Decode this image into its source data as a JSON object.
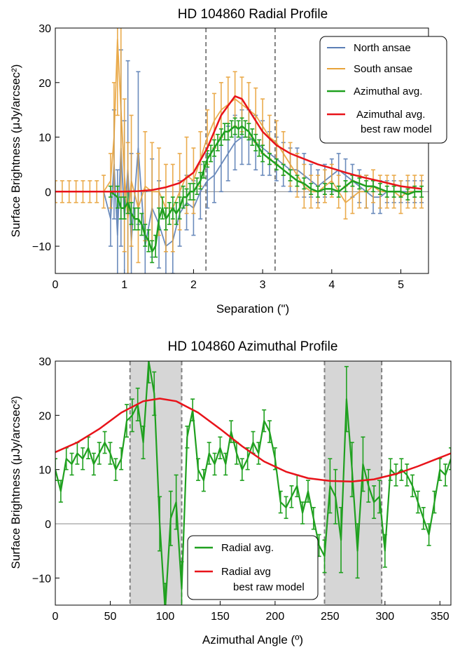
{
  "chart_data": [
    {
      "type": "line",
      "title": "HD 104860 Radial Profile",
      "xlabel": "Separation (\")",
      "ylabel": "Surface Brightness (μJy/arcsec²)",
      "xlim": [
        0,
        5.4
      ],
      "ylim": [
        -15,
        30
      ],
      "xticks": [
        0,
        1,
        2,
        3,
        4,
        5
      ],
      "yticks": [
        -10,
        0,
        10,
        20,
        30
      ],
      "vlines": [
        2.18,
        3.18
      ],
      "legend": {
        "position": "top-right",
        "entries": [
          "North ansae",
          "South ansae",
          "Azimuthal avg.",
          "Azimuthal avg.",
          "best raw model"
        ]
      },
      "series": [
        {
          "name": "North ansae",
          "color": "#5b7fb5",
          "x": [
            0,
            0.1,
            0.2,
            0.3,
            0.4,
            0.5,
            0.6,
            0.7,
            0.8,
            0.85,
            0.9,
            0.95,
            1.0,
            1.05,
            1.1,
            1.2,
            1.3,
            1.4,
            1.5,
            1.6,
            1.7,
            1.8,
            1.9,
            2.0,
            2.1,
            2.2,
            2.3,
            2.4,
            2.5,
            2.6,
            2.7,
            2.8,
            2.9,
            3.0,
            3.1,
            3.2,
            3.3,
            3.4,
            3.5,
            3.6,
            3.7,
            3.8,
            3.9,
            4.0,
            4.1,
            4.2,
            4.3,
            4.4,
            4.5,
            4.6,
            4.7,
            4.8,
            4.9,
            5.0,
            5.1,
            5.2,
            5.3
          ],
          "y": [
            0,
            0,
            0,
            0,
            0,
            0,
            0,
            0,
            -5,
            5,
            -8,
            8,
            -5,
            4,
            -9,
            8,
            -10,
            -3,
            -6,
            -10,
            -9,
            -4,
            -2,
            -3,
            0,
            2,
            3,
            5,
            7,
            9,
            10,
            10,
            9,
            8,
            7,
            6,
            5,
            4,
            4,
            3,
            2,
            1,
            2,
            3,
            4,
            3,
            2,
            1,
            0,
            -1,
            -1,
            0,
            0,
            0,
            0,
            0,
            0
          ],
          "err": [
            0,
            0,
            0,
            0,
            0,
            0,
            0,
            0,
            5,
            10,
            12,
            18,
            18,
            20,
            16,
            14,
            10,
            9,
            8,
            7,
            6,
            6,
            5,
            5,
            5,
            5,
            5,
            5,
            5,
            5,
            5,
            5,
            5,
            5,
            4,
            4,
            4,
            4,
            4,
            4,
            3,
            3,
            3,
            3,
            3,
            3,
            3,
            3,
            3,
            3,
            3,
            2,
            2,
            2,
            2,
            2,
            2
          ]
        },
        {
          "name": "South ansae",
          "color": "#e8a33a",
          "x": [
            0,
            0.1,
            0.2,
            0.3,
            0.4,
            0.5,
            0.6,
            0.7,
            0.8,
            0.85,
            0.9,
            0.95,
            1.0,
            1.05,
            1.1,
            1.2,
            1.3,
            1.4,
            1.5,
            1.6,
            1.7,
            1.8,
            1.9,
            2.0,
            2.1,
            2.2,
            2.3,
            2.4,
            2.5,
            2.6,
            2.7,
            2.8,
            2.9,
            3.0,
            3.1,
            3.2,
            3.3,
            3.4,
            3.5,
            3.6,
            3.7,
            3.8,
            3.9,
            4.0,
            4.1,
            4.2,
            4.3,
            4.4,
            4.5,
            4.6,
            4.7,
            4.8,
            4.9,
            5.0,
            5.1,
            5.2,
            5.3
          ],
          "y": [
            0,
            0,
            0,
            0,
            0,
            0,
            0,
            0,
            2,
            10,
            28,
            15,
            3,
            -5,
            2,
            -3,
            1,
            0,
            0,
            -3,
            -3,
            0,
            3,
            2,
            6,
            10,
            13,
            15,
            16,
            17,
            16,
            15,
            14,
            12,
            10,
            9,
            7,
            5,
            3,
            1,
            0,
            0,
            1,
            2,
            0,
            -2,
            -1,
            0,
            0,
            1,
            0,
            0,
            0,
            -1,
            0,
            0,
            0
          ],
          "err": [
            2,
            2,
            2,
            2,
            2,
            2,
            2,
            3,
            5,
            10,
            14,
            16,
            14,
            14,
            12,
            10,
            10,
            9,
            8,
            8,
            8,
            7,
            7,
            6,
            5,
            5,
            5,
            5,
            5,
            5,
            5,
            5,
            5,
            5,
            4,
            4,
            4,
            4,
            4,
            4,
            3,
            3,
            3,
            3,
            3,
            3,
            3,
            3,
            3,
            3,
            3,
            3,
            3,
            3,
            3,
            3,
            3
          ]
        },
        {
          "name": "Azimuthal avg.",
          "color": "#1fa01f",
          "x": [
            0,
            0.1,
            0.2,
            0.3,
            0.4,
            0.5,
            0.6,
            0.7,
            0.8,
            0.9,
            0.95,
            1.0,
            1.05,
            1.1,
            1.15,
            1.2,
            1.25,
            1.3,
            1.35,
            1.4,
            1.45,
            1.5,
            1.55,
            1.6,
            1.65,
            1.7,
            1.75,
            1.8,
            1.85,
            1.9,
            1.95,
            2.0,
            2.05,
            2.1,
            2.15,
            2.2,
            2.25,
            2.3,
            2.35,
            2.4,
            2.45,
            2.5,
            2.55,
            2.6,
            2.65,
            2.7,
            2.75,
            2.8,
            2.85,
            2.9,
            2.95,
            3.0,
            3.1,
            3.2,
            3.3,
            3.4,
            3.5,
            3.6,
            3.7,
            3.8,
            3.9,
            4.0,
            4.1,
            4.2,
            4.3,
            4.4,
            4.5,
            4.6,
            4.7,
            4.8,
            4.9,
            5.0,
            5.1,
            5.2,
            5.3
          ],
          "y": [
            0,
            0,
            0,
            0,
            0,
            0,
            0,
            0,
            0,
            -1,
            -3,
            -3,
            -2,
            -4,
            -5,
            -5,
            -6,
            -8,
            -9,
            -11,
            -10,
            -5,
            -3,
            -5,
            -4,
            -3,
            -4,
            -3,
            -1,
            -1,
            0,
            0,
            1,
            2,
            4,
            6,
            7,
            8,
            9,
            10,
            11,
            11,
            11.5,
            12,
            11.5,
            12,
            11.5,
            11,
            10,
            9,
            8,
            7,
            6,
            5,
            4,
            3,
            2,
            1.5,
            0.5,
            0,
            0.5,
            0.5,
            0,
            1,
            2,
            1.5,
            1,
            1,
            0.5,
            0,
            0,
            0,
            -0.5,
            0,
            0
          ],
          "err": [
            0,
            0,
            0,
            0,
            0,
            0,
            0,
            0,
            1,
            2,
            2,
            2,
            2,
            2,
            2,
            2,
            2,
            2,
            2,
            2,
            2,
            2,
            2,
            2,
            2,
            2,
            2,
            2,
            2,
            1.5,
            1.5,
            1.5,
            1.5,
            1.5,
            1.5,
            1.5,
            1.5,
            1.5,
            1.5,
            1.5,
            1.5,
            1.5,
            1.5,
            1.5,
            1.5,
            1.5,
            1.5,
            1.5,
            1.5,
            1.5,
            1.5,
            1.5,
            1,
            1,
            1,
            1,
            1,
            1,
            1,
            1,
            1,
            1,
            1,
            1,
            1,
            1,
            1,
            1,
            1,
            1,
            1,
            1,
            1,
            1,
            1
          ]
        },
        {
          "name": "Azimuthal avg. best raw model",
          "color": "#e8131a",
          "x": [
            0,
            0.5,
            1.0,
            1.2,
            1.4,
            1.6,
            1.8,
            2.0,
            2.2,
            2.4,
            2.6,
            2.7,
            2.8,
            3.0,
            3.2,
            3.4,
            3.6,
            3.8,
            4.0,
            4.2,
            4.4,
            4.6,
            4.8,
            5.0,
            5.3
          ],
          "y": [
            0,
            0,
            0,
            0.1,
            0.3,
            0.8,
            1.6,
            3.5,
            8,
            14,
            17.5,
            17,
            15,
            11,
            8.5,
            7,
            6,
            5,
            4.3,
            3.5,
            2.8,
            2.2,
            1.6,
            1.0,
            0.5
          ]
        }
      ]
    },
    {
      "type": "line",
      "title": "HD 104860 Azimuthal Profile",
      "xlabel": "Azimuthal Angle (º)",
      "ylabel": "Surface Brightness (μJy/arcsec²)",
      "xlim": [
        0,
        360
      ],
      "ylim": [
        -15,
        30
      ],
      "xticks": [
        0,
        50,
        100,
        150,
        200,
        250,
        300,
        350
      ],
      "yticks": [
        -10,
        0,
        10,
        20,
        30
      ],
      "shaded": [
        [
          68,
          115
        ],
        [
          245,
          297
        ]
      ],
      "legend": {
        "position": "bottom-center",
        "entries": [
          "Radial avg.",
          "Radial avg",
          "best raw model"
        ]
      },
      "series": [
        {
          "name": "Radial avg.",
          "color": "#1fa01f",
          "x": [
            0,
            5,
            10,
            15,
            20,
            25,
            30,
            35,
            40,
            45,
            50,
            55,
            60,
            65,
            70,
            75,
            80,
            85,
            90,
            95,
            100,
            105,
            110,
            115,
            120,
            125,
            130,
            135,
            140,
            145,
            150,
            155,
            160,
            165,
            170,
            175,
            180,
            185,
            190,
            195,
            200,
            205,
            210,
            215,
            220,
            225,
            230,
            235,
            240,
            245,
            250,
            255,
            260,
            265,
            270,
            275,
            280,
            285,
            290,
            295,
            300,
            305,
            310,
            315,
            320,
            325,
            330,
            335,
            340,
            345,
            350,
            355,
            360
          ],
          "y": [
            10,
            6,
            12,
            11,
            13,
            12,
            14,
            11,
            13,
            15,
            13,
            10,
            12,
            19,
            20,
            22,
            15,
            30,
            24,
            0,
            -16,
            1,
            4,
            -12,
            16,
            21,
            10,
            8,
            13,
            11,
            14,
            11,
            17,
            13,
            10,
            12,
            15,
            13,
            19,
            17,
            12,
            4,
            3,
            5,
            7,
            2,
            6,
            1,
            -4,
            -6,
            7,
            5,
            -3,
            23,
            10,
            -5,
            11,
            7,
            4,
            5,
            -5,
            10,
            9,
            10,
            9,
            7,
            4,
            1,
            -2,
            4,
            10,
            9,
            12
          ],
          "err": [
            2,
            2,
            2,
            2,
            2,
            2,
            2,
            2,
            2,
            2,
            2,
            2,
            2,
            3,
            3,
            3,
            3,
            4,
            4,
            5,
            5,
            5,
            5,
            5,
            2,
            2,
            2,
            2,
            2,
            2,
            2,
            2,
            2,
            2,
            2,
            2,
            2,
            2,
            2,
            2,
            2,
            2,
            2,
            2,
            2,
            2,
            2,
            2,
            2,
            3,
            5,
            5,
            6,
            6,
            5,
            5,
            5,
            3,
            3,
            3,
            3,
            2,
            2,
            2,
            2,
            2,
            2,
            2,
            2,
            2,
            2,
            2,
            2
          ]
        },
        {
          "name": "Radial avg best raw model",
          "color": "#e8131a",
          "x": [
            0,
            20,
            40,
            60,
            80,
            95,
            110,
            130,
            150,
            170,
            190,
            210,
            230,
            250,
            270,
            290,
            310,
            330,
            350,
            360
          ],
          "y": [
            13.2,
            15,
            17.5,
            20.5,
            22.6,
            23.1,
            22.6,
            20.5,
            17.5,
            14.3,
            11.5,
            9.6,
            8.4,
            7.9,
            7.8,
            8.2,
            9.2,
            10.6,
            12.2,
            13
          ]
        }
      ]
    }
  ]
}
